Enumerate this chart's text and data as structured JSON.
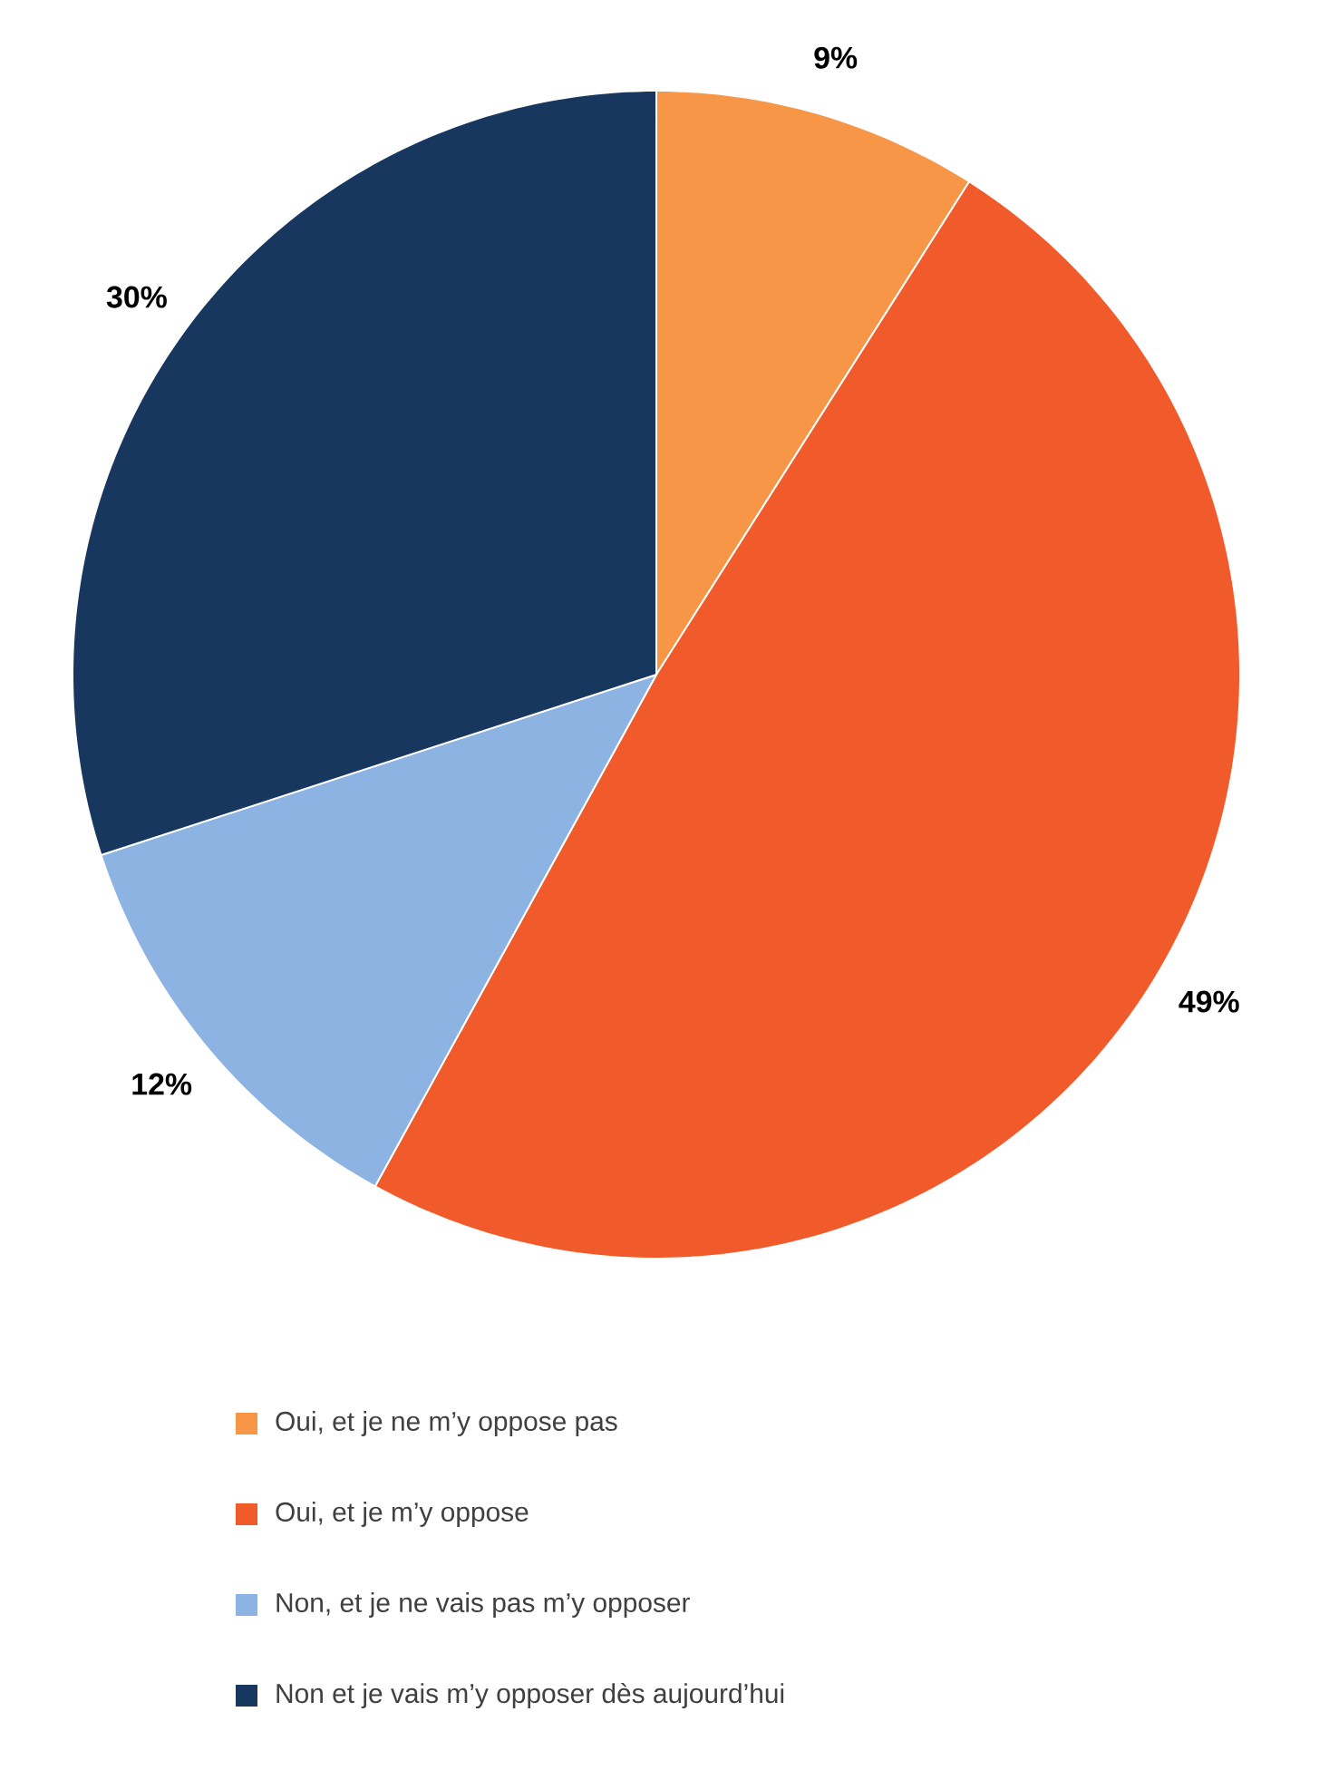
{
  "chart_data": {
    "type": "pie",
    "categories": [
      "Oui, et je ne m’y oppose pas",
      "Oui, et je m’y oppose",
      "Non, et je ne vais pas m’y opposer",
      "Non et je vais m’y opposer dès aujourd’hui"
    ],
    "values": [
      9,
      49,
      12,
      30
    ],
    "value_labels": [
      "9%",
      "49%",
      "12%",
      "30%"
    ],
    "colors": [
      "#f79646",
      "#f15a2b",
      "#8db3e2",
      "#17375e"
    ],
    "legend": "bottom"
  }
}
